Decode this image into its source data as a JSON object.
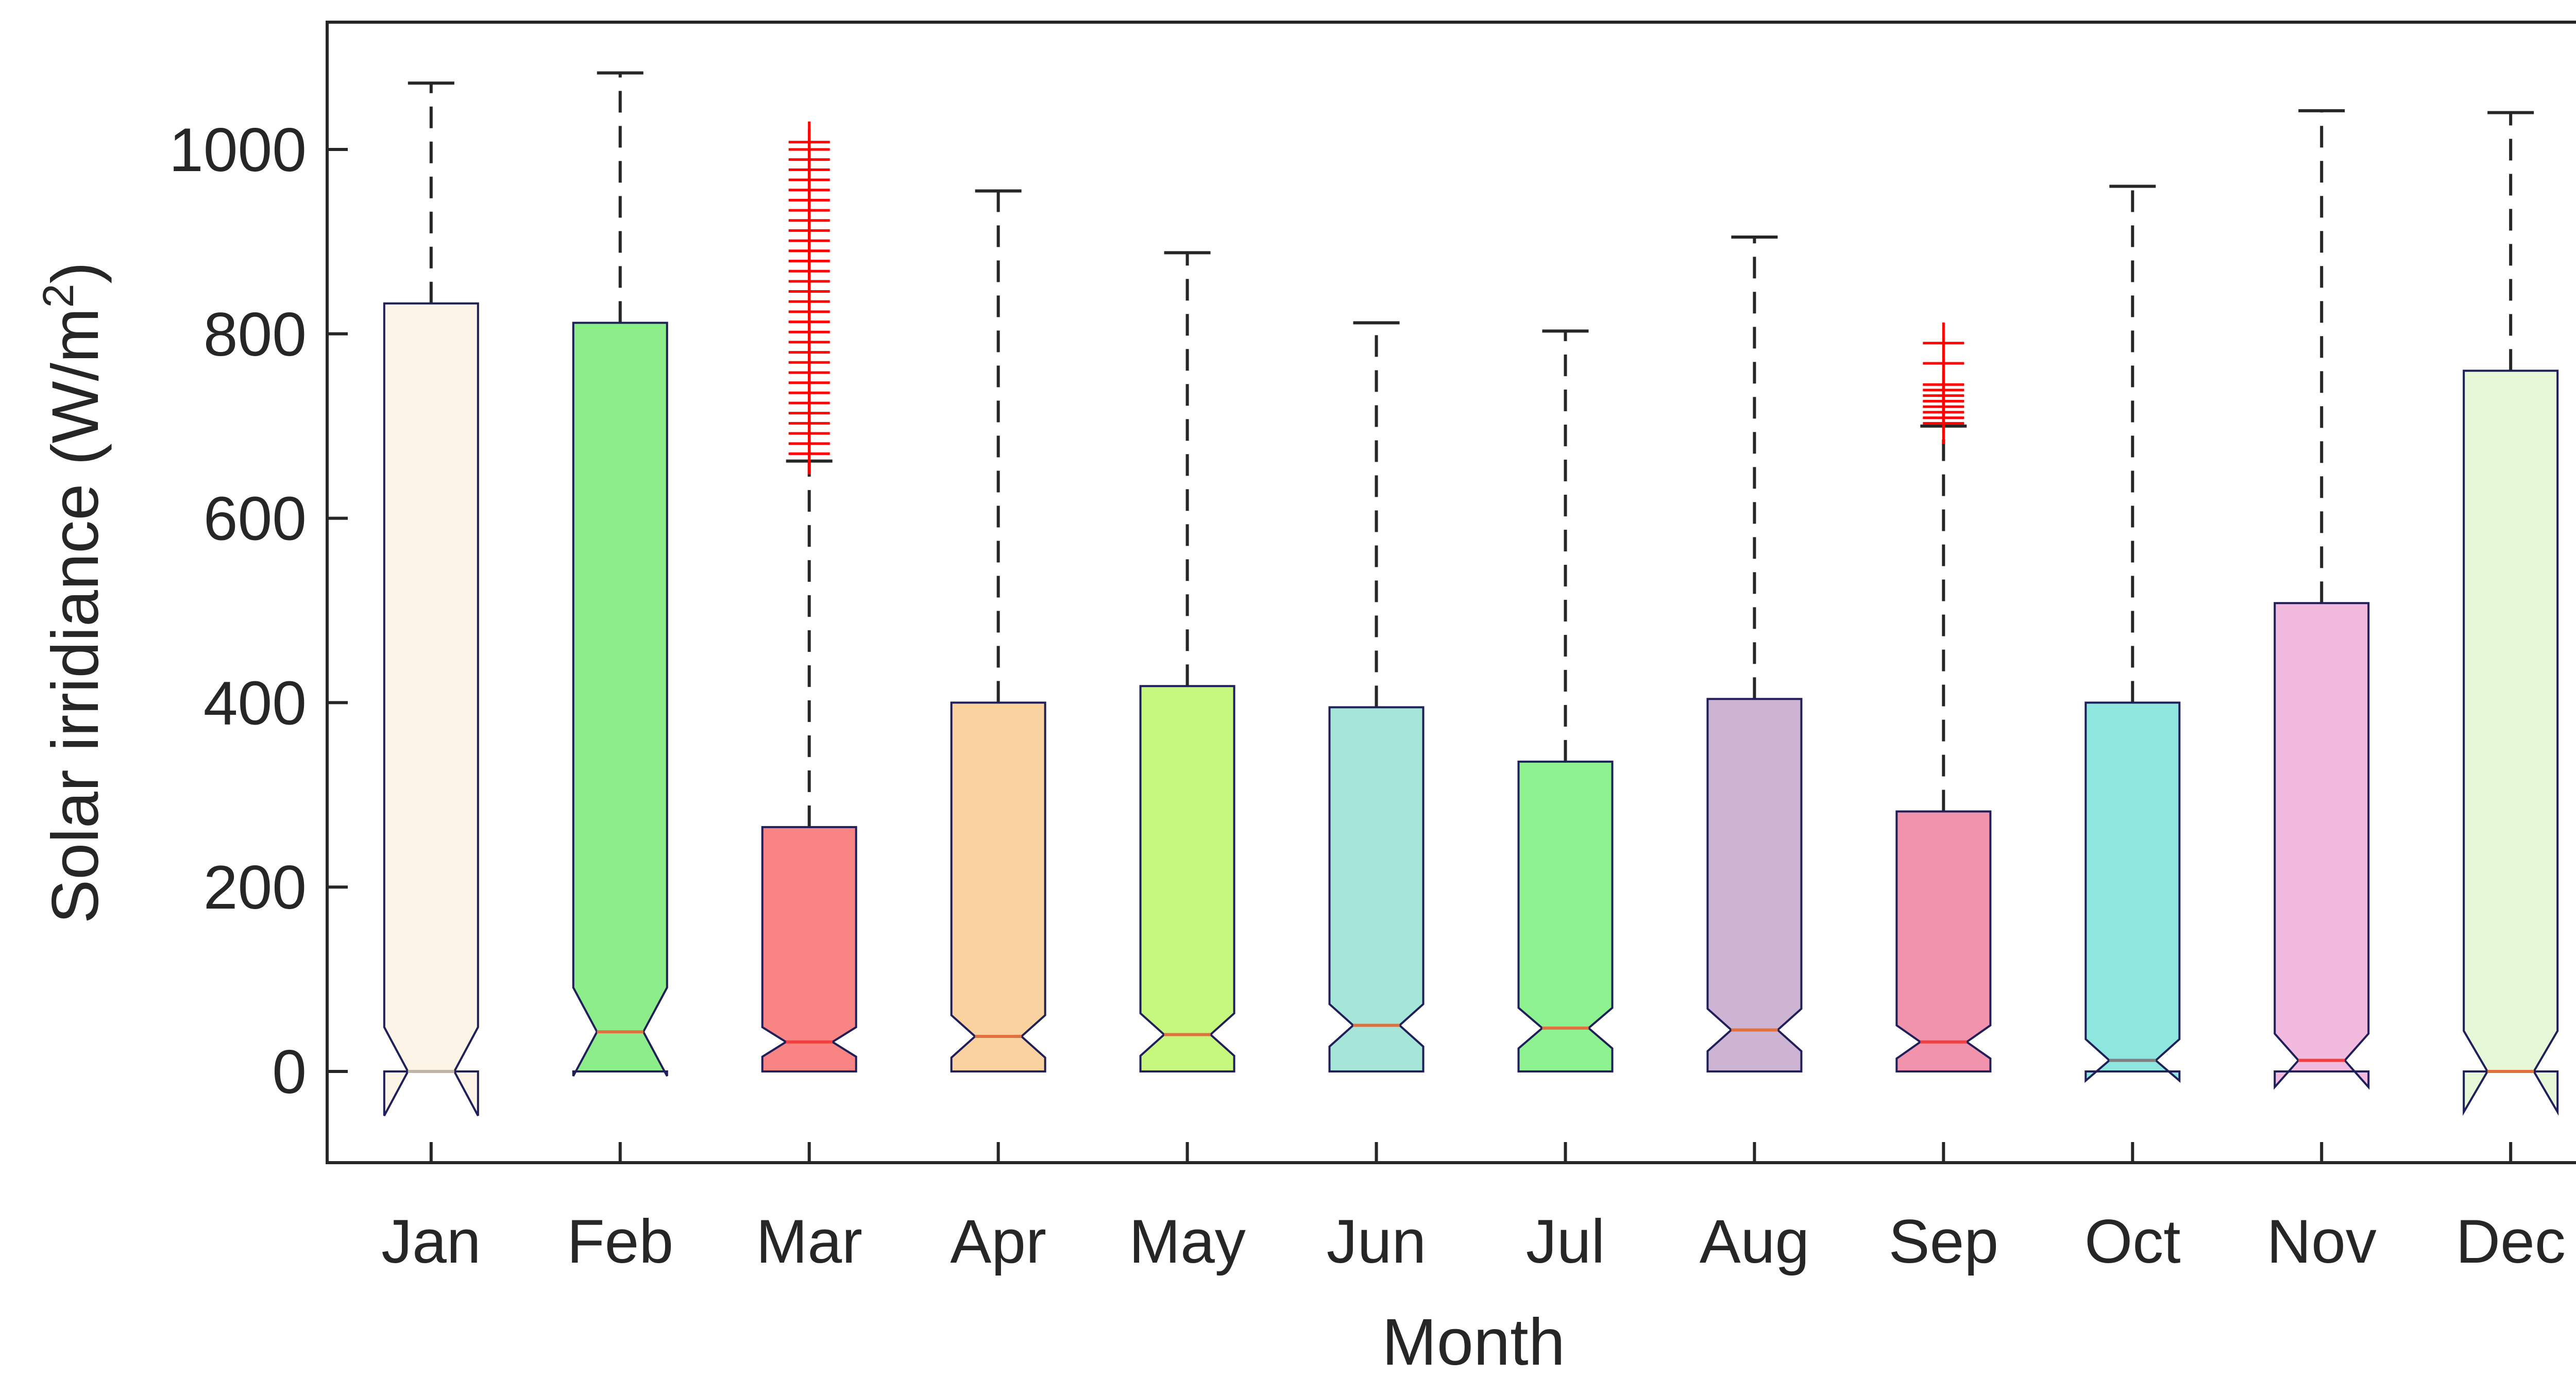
{
  "chart_data": {
    "type": "boxplot",
    "notched": true,
    "title": "",
    "xlabel": "Month",
    "ylabel": "Solar irridiance (W/m",
    "ylabel_superscript": "2",
    "ylabel_suffix": ")",
    "ylim": [
      -100,
      1130
    ],
    "yticks": [
      0,
      200,
      400,
      600,
      800,
      1000
    ],
    "categories": [
      "Jan",
      "Feb",
      "Mar",
      "Apr",
      "May",
      "Jun",
      "Jul",
      "Aug",
      "Sep",
      "Oct",
      "Nov",
      "Dec"
    ],
    "boxes": [
      {
        "month": "Jan",
        "whisker_low": 0,
        "q1": 0,
        "median": 0,
        "q3": 833,
        "whisker_high": 1072,
        "notch_low": -48,
        "notch_high": 48,
        "color": "#FBF4E7",
        "median_color": "#C0B5A5",
        "outliers": []
      },
      {
        "month": "Feb",
        "whisker_low": 0,
        "q1": 0,
        "median": 43,
        "q3": 812,
        "whisker_high": 1083,
        "notch_low": -5,
        "notch_high": 91,
        "color": "#8DED8A",
        "median_color": "#E07040",
        "outliers": []
      },
      {
        "month": "Mar",
        "whisker_low": 0,
        "q1": 0,
        "median": 32,
        "q3": 265,
        "whisker_high": 662,
        "notch_low": 16,
        "notch_high": 48,
        "color": "#F98484",
        "median_color": "#F23E3E",
        "outliers": [
          670,
          681,
          692,
          703,
          714,
          725,
          736,
          747,
          758,
          769,
          780,
          791,
          802,
          813,
          824,
          835,
          846,
          857,
          868,
          879,
          890,
          901,
          912,
          923,
          934,
          945,
          956,
          967,
          978,
          989,
          1000,
          1008
        ]
      },
      {
        "month": "Apr",
        "whisker_low": 0,
        "q1": 0,
        "median": 38,
        "q3": 400,
        "whisker_high": 955,
        "notch_low": 15,
        "notch_high": 61,
        "color": "#F9D2A0",
        "median_color": "#E07040",
        "outliers": []
      },
      {
        "month": "May",
        "whisker_low": 0,
        "q1": 0,
        "median": 40,
        "q3": 418,
        "whisker_high": 888,
        "notch_low": 17,
        "notch_high": 63,
        "color": "#C5F87C",
        "median_color": "#E07040",
        "outliers": []
      },
      {
        "month": "Jun",
        "whisker_low": 0,
        "q1": 0,
        "median": 50,
        "q3": 395,
        "whisker_high": 812,
        "notch_low": 27,
        "notch_high": 73,
        "color": "#A6E6D8",
        "median_color": "#E07040",
        "outliers": []
      },
      {
        "month": "Jul",
        "whisker_low": 0,
        "q1": 0,
        "median": 47,
        "q3": 336,
        "whisker_high": 803,
        "notch_low": 25,
        "notch_high": 69,
        "color": "#8DF28F",
        "median_color": "#E07040",
        "outliers": []
      },
      {
        "month": "Aug",
        "whisker_low": 0,
        "q1": 0,
        "median": 45,
        "q3": 404,
        "whisker_high": 905,
        "notch_low": 22,
        "notch_high": 68,
        "color": "#CEB4D3",
        "median_color": "#E07040",
        "outliers": []
      },
      {
        "month": "Sep",
        "whisker_low": 0,
        "q1": 0,
        "median": 32,
        "q3": 282,
        "whisker_high": 700,
        "notch_low": 14,
        "notch_high": 50,
        "color": "#F293AE",
        "median_color": "#F23E3E",
        "outliers": [
          703,
          709,
          715,
          721,
          727,
          733,
          739,
          745,
          768,
          790
        ]
      },
      {
        "month": "Oct",
        "whisker_low": 0,
        "q1": 0,
        "median": 12,
        "q3": 400,
        "whisker_high": 960,
        "notch_low": -10,
        "notch_high": 35,
        "color": "#8EE6DE",
        "median_color": "#808080",
        "outliers": []
      },
      {
        "month": "Nov",
        "whisker_low": 0,
        "q1": 0,
        "median": 12,
        "q3": 508,
        "whisker_high": 1042,
        "notch_low": -17,
        "notch_high": 41,
        "color": "#F2BADE",
        "median_color": "#F23E3E",
        "outliers": []
      },
      {
        "month": "Dec",
        "whisker_low": 0,
        "q1": 0,
        "median": 0,
        "q3": 760,
        "whisker_high": 1040,
        "notch_low": -44,
        "notch_high": 44,
        "color": "#E6F8D8",
        "median_color": "#E07040",
        "outliers": []
      }
    ]
  }
}
